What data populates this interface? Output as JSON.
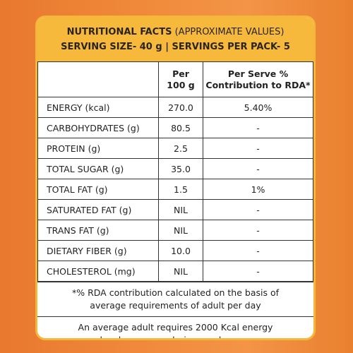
{
  "header": {
    "line1_bold": "NUTRITIONAL FACTS",
    "line1_normal": " (APPROXIMATE VALUES)",
    "line2": "SERVING SIZE- 40 g | SERVINGS PER PACK- 5"
  },
  "table": {
    "col2_header_line1": "Per",
    "col2_header_line2": "100 g",
    "col3_header_line1": "Per Serve %",
    "col3_header_line2": "Contribution to RDA*",
    "rows": [
      {
        "name": "ENERGY (kcal)",
        "per100": "270.0",
        "rda": "5.40%"
      },
      {
        "name": "CARBOHYDRATES (g)",
        "per100": "80.5",
        "rda": "-"
      },
      {
        "name": "PROTEIN (g)",
        "per100": "2.5",
        "rda": "-"
      },
      {
        "name": "TOTAL SUGAR (g)",
        "per100": "35.0",
        "rda": "-"
      },
      {
        "name": "TOTAL FAT (g)",
        "per100": "1.5",
        "rda": "1%"
      },
      {
        "name": "SATURATED FAT (g)",
        "per100": "NIL",
        "rda": "-"
      },
      {
        "name": "TRANS FAT (g)",
        "per100": "NIL",
        "rda": "-"
      },
      {
        "name": "DIETARY FIBER (g)",
        "per100": "10.0",
        "rda": "-"
      },
      {
        "name": "CHOLESTEROL (mg)",
        "per100": "NIL",
        "rda": "-"
      }
    ]
  },
  "footer": {
    "note1_line1": "*% RDA contribution calculated on the basis of",
    "note1_line2": "average requirements of adult per day",
    "note2_line1": "An average adult requires 2000 Kcal energy",
    "note2_line2": "per day, however, calories needs may vary."
  },
  "colors": {
    "header_bg": "#f7b93b",
    "pack_orange": "#f08a3a"
  }
}
